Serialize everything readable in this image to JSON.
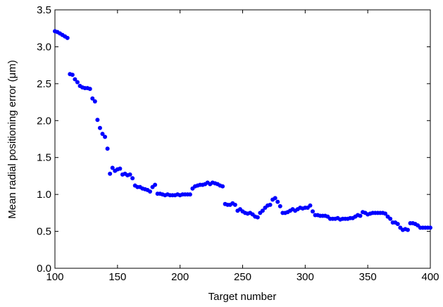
{
  "chart_data": {
    "type": "scatter",
    "xlabel": "Target number",
    "ylabel": "Mean radial positioning error (μm)",
    "color": "#0000ff",
    "xlim": [
      100,
      400
    ],
    "xticks": [
      100,
      150,
      200,
      250,
      300,
      350,
      400
    ],
    "ylim": [
      0,
      3.5
    ],
    "yticks": [
      {
        "value": 0,
        "label": "0.0"
      },
      0.5,
      {
        "value": 1,
        "label": "1.0"
      },
      1.5,
      {
        "value": 2,
        "label": "2.0"
      },
      2.5,
      {
        "value": 3,
        "label": "3.0"
      },
      3.5
    ],
    "x": [
      100,
      102,
      104,
      106,
      108,
      110,
      112,
      114,
      116,
      118,
      120,
      122,
      124,
      126,
      128,
      130,
      132,
      134,
      136,
      138,
      140,
      142,
      144,
      146,
      148,
      150,
      152,
      154,
      156,
      158,
      160,
      162,
      164,
      166,
      168,
      170,
      172,
      174,
      176,
      178,
      180,
      182,
      184,
      186,
      188,
      190,
      192,
      194,
      196,
      198,
      200,
      202,
      204,
      206,
      208,
      210,
      212,
      214,
      216,
      218,
      220,
      222,
      224,
      226,
      228,
      230,
      232,
      234,
      236,
      238,
      240,
      242,
      244,
      246,
      248,
      250,
      252,
      254,
      256,
      258,
      260,
      262,
      264,
      266,
      268,
      270,
      272,
      274,
      276,
      278,
      280,
      282,
      284,
      286,
      288,
      290,
      292,
      294,
      296,
      298,
      300,
      302,
      304,
      306,
      308,
      310,
      312,
      314,
      316,
      318,
      320,
      322,
      324,
      326,
      328,
      330,
      332,
      334,
      336,
      338,
      340,
      342,
      344,
      346,
      348,
      350,
      352,
      354,
      356,
      358,
      360,
      362,
      364,
      366,
      368,
      370,
      372,
      374,
      376,
      378,
      380,
      382,
      384,
      386,
      388,
      390,
      392,
      394,
      396,
      398,
      400
    ],
    "values": [
      3.21,
      3.2,
      3.18,
      3.16,
      3.14,
      3.12,
      2.63,
      2.62,
      2.56,
      2.52,
      2.47,
      2.45,
      2.44,
      2.44,
      2.43,
      2.3,
      2.26,
      2.01,
      1.9,
      1.82,
      1.78,
      1.62,
      1.28,
      1.36,
      1.32,
      1.34,
      1.35,
      1.27,
      1.28,
      1.26,
      1.27,
      1.22,
      1.12,
      1.1,
      1.1,
      1.08,
      1.07,
      1.06,
      1.04,
      1.1,
      1.13,
      1.01,
      1.01,
      1.0,
      0.99,
      1.0,
      0.99,
      0.99,
      0.99,
      1.0,
      0.99,
      1.0,
      1.0,
      1.0,
      1.0,
      1.08,
      1.11,
      1.12,
      1.13,
      1.13,
      1.14,
      1.16,
      1.14,
      1.16,
      1.15,
      1.14,
      1.12,
      1.11,
      0.87,
      0.86,
      0.86,
      0.88,
      0.86,
      0.78,
      0.8,
      0.77,
      0.75,
      0.74,
      0.75,
      0.73,
      0.7,
      0.69,
      0.75,
      0.78,
      0.82,
      0.85,
      0.86,
      0.93,
      0.95,
      0.9,
      0.84,
      0.75,
      0.75,
      0.76,
      0.78,
      0.8,
      0.78,
      0.8,
      0.82,
      0.81,
      0.82,
      0.82,
      0.85,
      0.77,
      0.72,
      0.72,
      0.71,
      0.71,
      0.71,
      0.7,
      0.67,
      0.67,
      0.67,
      0.68,
      0.66,
      0.67,
      0.67,
      0.67,
      0.68,
      0.68,
      0.7,
      0.72,
      0.71,
      0.76,
      0.75,
      0.73,
      0.74,
      0.75,
      0.75,
      0.75,
      0.75,
      0.75,
      0.74,
      0.7,
      0.67,
      0.62,
      0.62,
      0.6,
      0.55,
      0.52,
      0.53,
      0.52,
      0.61,
      0.61,
      0.6,
      0.58,
      0.55,
      0.55,
      0.55,
      0.55,
      0.55
    ]
  }
}
